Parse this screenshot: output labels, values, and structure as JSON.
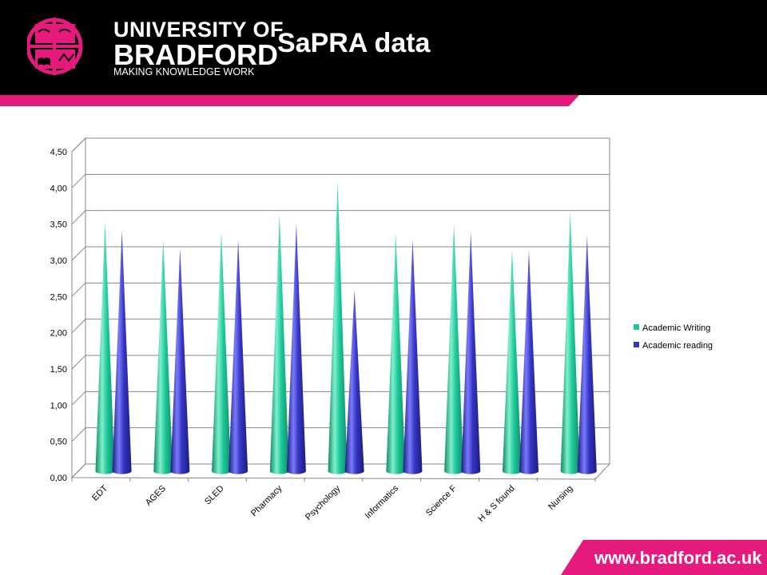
{
  "header": {
    "title": "SaPRA data",
    "logo_line1": "UNIVERSITY OF",
    "logo_line2": "BRADFORD",
    "logo_line3": "MAKING KNOWLEDGE WORK"
  },
  "footer": {
    "url": "www.bradford.ac.uk"
  },
  "colors": {
    "brand_pink": "#e6197d",
    "header_bg": "#000000",
    "academic_writing": "#1fc89a",
    "academic_reading": "#3535c0"
  },
  "chart_data": {
    "type": "bar",
    "categories": [
      "EDT",
      "AGES",
      "SLED",
      "Pharmacy",
      "Psychology",
      "Informatics",
      "Science F",
      "H & S found",
      "Nursing"
    ],
    "series": [
      {
        "name": "Academic Writing",
        "values": [
          3.45,
          3.2,
          3.3,
          3.55,
          4.0,
          3.28,
          3.42,
          3.06,
          3.58
        ]
      },
      {
        "name": "Academic reading",
        "values": [
          3.33,
          3.08,
          3.2,
          3.42,
          2.5,
          3.2,
          3.3,
          3.05,
          3.25
        ]
      }
    ],
    "ylim": [
      0,
      4.5
    ],
    "yticks": [
      "0,00",
      "0,50",
      "1,00",
      "1,50",
      "2,00",
      "2,50",
      "3,00",
      "3,50",
      "4,00",
      "4,50"
    ],
    "grid": true,
    "legend": "right",
    "style": "3d-cone"
  }
}
